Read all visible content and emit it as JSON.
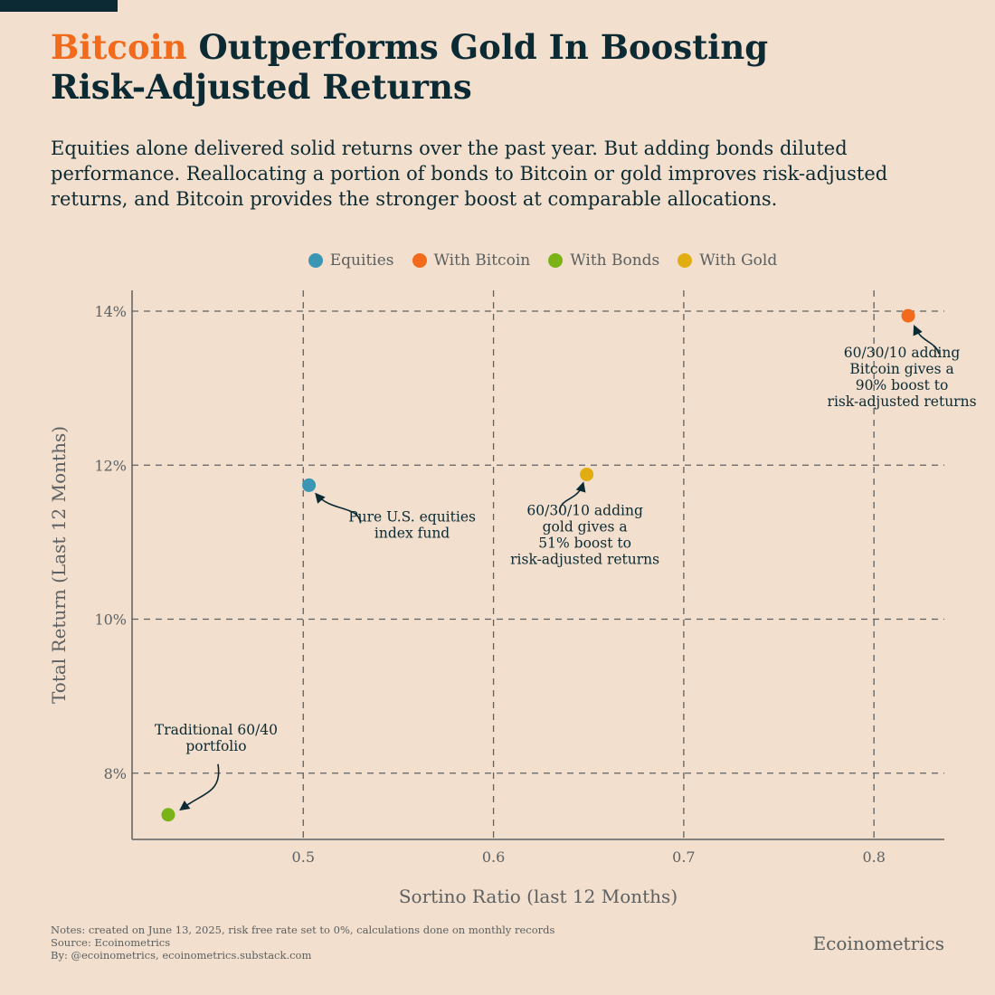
{
  "header": {
    "title_highlight": "Bitcoin",
    "title_rest_line1": " Outperforms Gold In Boosting",
    "title_line2": "Risk-Adjusted Returns",
    "subtitle": "Equities alone delivered solid returns over the past year. But adding bonds diluted performance. Reallocating a portion of bonds to Bitcoin or gold improves risk-adjusted returns, and Bitcoin provides the stronger boost at comparable allocations."
  },
  "chart_data": {
    "type": "scatter",
    "xlabel": "Sortino Ratio (last 12 Months)",
    "ylabel": "Total Return (Last 12 Months)",
    "xlim": [
      0.41,
      0.837
    ],
    "ylim": [
      7.14,
      14.27
    ],
    "xticks": [
      0.5,
      0.6,
      0.7,
      0.8
    ],
    "xtick_labels": [
      "0.5",
      "0.6",
      "0.7",
      "0.8"
    ],
    "yticks": [
      8,
      10,
      12,
      14
    ],
    "ytick_labels": [
      "8%",
      "10%",
      "12%",
      "14%"
    ],
    "grid": true,
    "legend_placement": "top-center",
    "series": [
      {
        "name": "Equities",
        "color": "#3a96b3",
        "x": 0.503,
        "y": 11.74,
        "annotation": [
          "Pure U.S. equities",
          "index fund"
        ]
      },
      {
        "name": "With Bitcoin",
        "color": "#f26a1b",
        "x": 0.818,
        "y": 13.94,
        "annotation": [
          "60/30/10 adding",
          "Bitcoin gives a",
          "90% boost to",
          "risk-adjusted returns"
        ]
      },
      {
        "name": "With Bonds",
        "color": "#7ab317",
        "x": 0.429,
        "y": 7.46,
        "annotation": [
          "Traditional 60/40",
          "portfolio"
        ]
      },
      {
        "name": "With Gold",
        "color": "#e1ad10",
        "x": 0.649,
        "y": 11.88,
        "annotation": [
          "60/30/10 adding",
          "gold gives a",
          "51% boost to",
          "risk-adjusted returns"
        ]
      }
    ]
  },
  "footer": {
    "notes": "Notes: created on June 13, 2025, risk free rate set to 0%, calculations done on monthly records",
    "source": "Source: Ecoinometrics",
    "by": "By: @ecoinometrics, ecoinometrics.substack.com",
    "brand": "Ecoinometrics"
  }
}
